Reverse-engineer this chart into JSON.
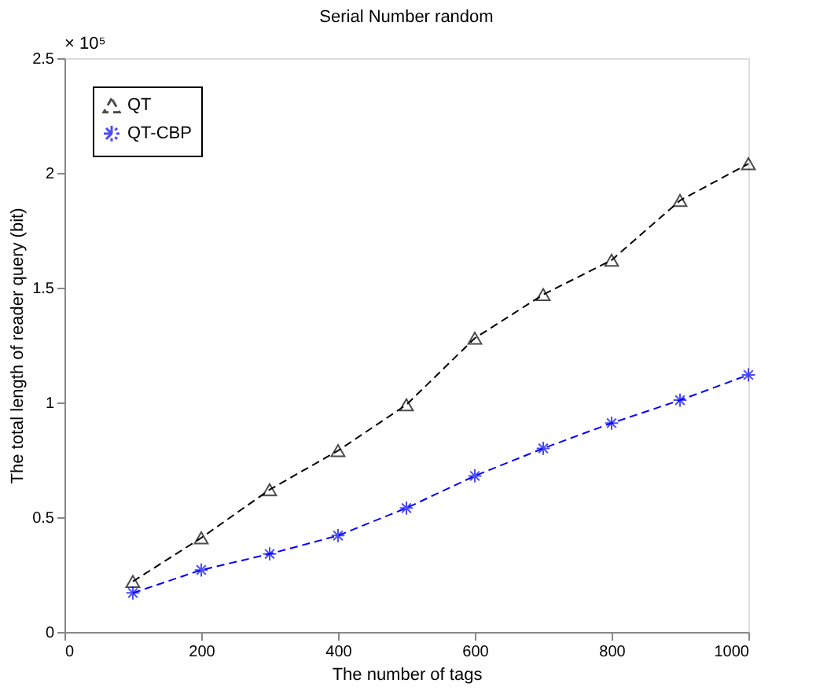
{
  "chart_data": {
    "type": "line",
    "title": "Serial Number random",
    "xlabel": "The number of tags",
    "ylabel": "The total length of reader query (bit)",
    "x": [
      100,
      200,
      300,
      400,
      500,
      600,
      700,
      800,
      900,
      1000
    ],
    "series": [
      {
        "name": "QT",
        "color": "#000000",
        "marker": "triangle",
        "line_style": "dashed",
        "values": [
          0.22,
          0.41,
          0.62,
          0.79,
          0.99,
          1.28,
          1.47,
          1.62,
          1.88,
          2.04
        ]
      },
      {
        "name": "QT-CBP",
        "color": "#0000ff",
        "marker": "cross",
        "line_style": "dashed",
        "values": [
          0.17,
          0.27,
          0.34,
          0.42,
          0.54,
          0.68,
          0.8,
          0.91,
          1.01,
          1.12
        ]
      }
    ],
    "xlim": [
      0,
      1000
    ],
    "xticks": [
      0,
      200,
      400,
      600,
      800,
      1000
    ],
    "ylim": [
      0,
      2.5
    ],
    "yticks": [
      0,
      0.5,
      1,
      1.5,
      2,
      2.5
    ],
    "annotations": [
      "× 10⁵"
    ],
    "grid": false,
    "legend": "top left"
  }
}
